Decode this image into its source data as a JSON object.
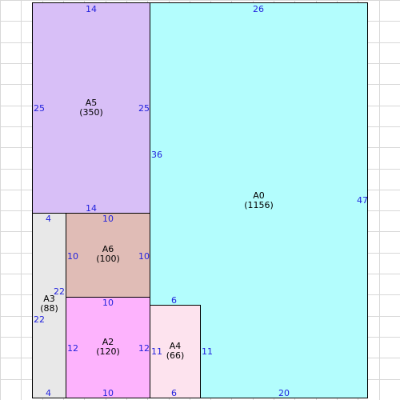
{
  "grid": {
    "color": "#d8d8d8"
  },
  "rects": [
    {
      "id": "A5",
      "name": "A5",
      "area": "(350)",
      "color": "#d8bff7",
      "dims": {
        "top": "14",
        "bottom": "14",
        "left": "25",
        "right": "25"
      }
    },
    {
      "id": "A0",
      "name": "A0",
      "area": "(1156)",
      "color": "#b3fdfd",
      "dims": {
        "top": "26",
        "bottom": "20",
        "left": "36",
        "right": "47"
      }
    },
    {
      "id": "A3",
      "name": "A3",
      "area": "(88)",
      "color": "#e8e8e8",
      "dims": {
        "top": "4",
        "bottom": "4",
        "left": "22",
        "right": "22"
      }
    },
    {
      "id": "A6",
      "name": "A6",
      "area": "(100)",
      "color": "#e0bcb6",
      "dims": {
        "top": "10",
        "bottom": "",
        "left": "10",
        "right": "10"
      }
    },
    {
      "id": "A2",
      "name": "A2",
      "area": "(120)",
      "color": "#fdb3fd",
      "dims": {
        "top": "10",
        "bottom": "10",
        "left": "12",
        "right": "12"
      }
    },
    {
      "id": "A4",
      "name": "A4",
      "area": "(66)",
      "color": "#fde3ee",
      "dims": {
        "top": "6",
        "bottom": "6",
        "left": "11",
        "right": "11"
      }
    }
  ]
}
